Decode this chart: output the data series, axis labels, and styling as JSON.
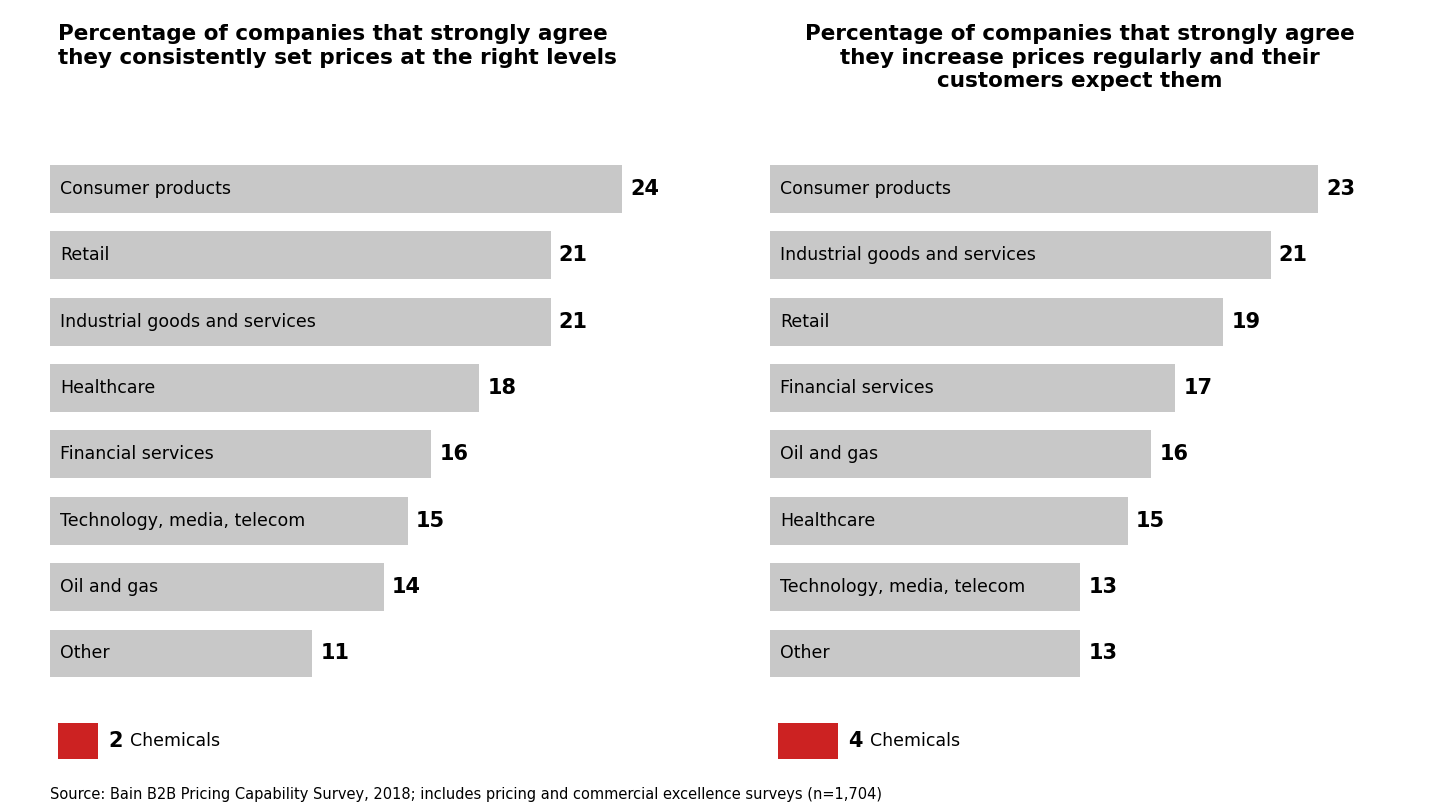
{
  "chart1": {
    "title": "Percentage of companies that strongly agree\nthey consistently set prices at the right levels",
    "categories": [
      "Consumer products",
      "Retail",
      "Industrial goods and services",
      "Healthcare",
      "Financial services",
      "Technology, media, telecom",
      "Oil and gas",
      "Other"
    ],
    "values": [
      24,
      21,
      21,
      18,
      16,
      15,
      14,
      11
    ],
    "chemicals_value": 2,
    "bar_color": "#c8c8c8",
    "chemicals_color": "#cc2222",
    "max_val": 26
  },
  "chart2": {
    "title": "Percentage of companies that strongly agree\nthey increase prices regularly and their\ncustomers expect them",
    "categories": [
      "Consumer products",
      "Industrial goods and services",
      "Retail",
      "Financial services",
      "Oil and gas",
      "Healthcare",
      "Technology, media, telecom",
      "Other"
    ],
    "values": [
      23,
      21,
      19,
      17,
      16,
      15,
      13,
      13
    ],
    "chemicals_value": 4,
    "bar_color": "#c8c8c8",
    "chemicals_color": "#cc2222",
    "max_val": 26
  },
  "source_text": "Source: Bain B2B Pricing Capability Survey, 2018; includes pricing and commercial excellence surveys (n=1,704)",
  "bg_color": "#ffffff",
  "bar_height": 0.72,
  "title_fontsize": 15.5,
  "label_fontsize": 12.5,
  "value_fontsize": 15,
  "source_fontsize": 10.5
}
